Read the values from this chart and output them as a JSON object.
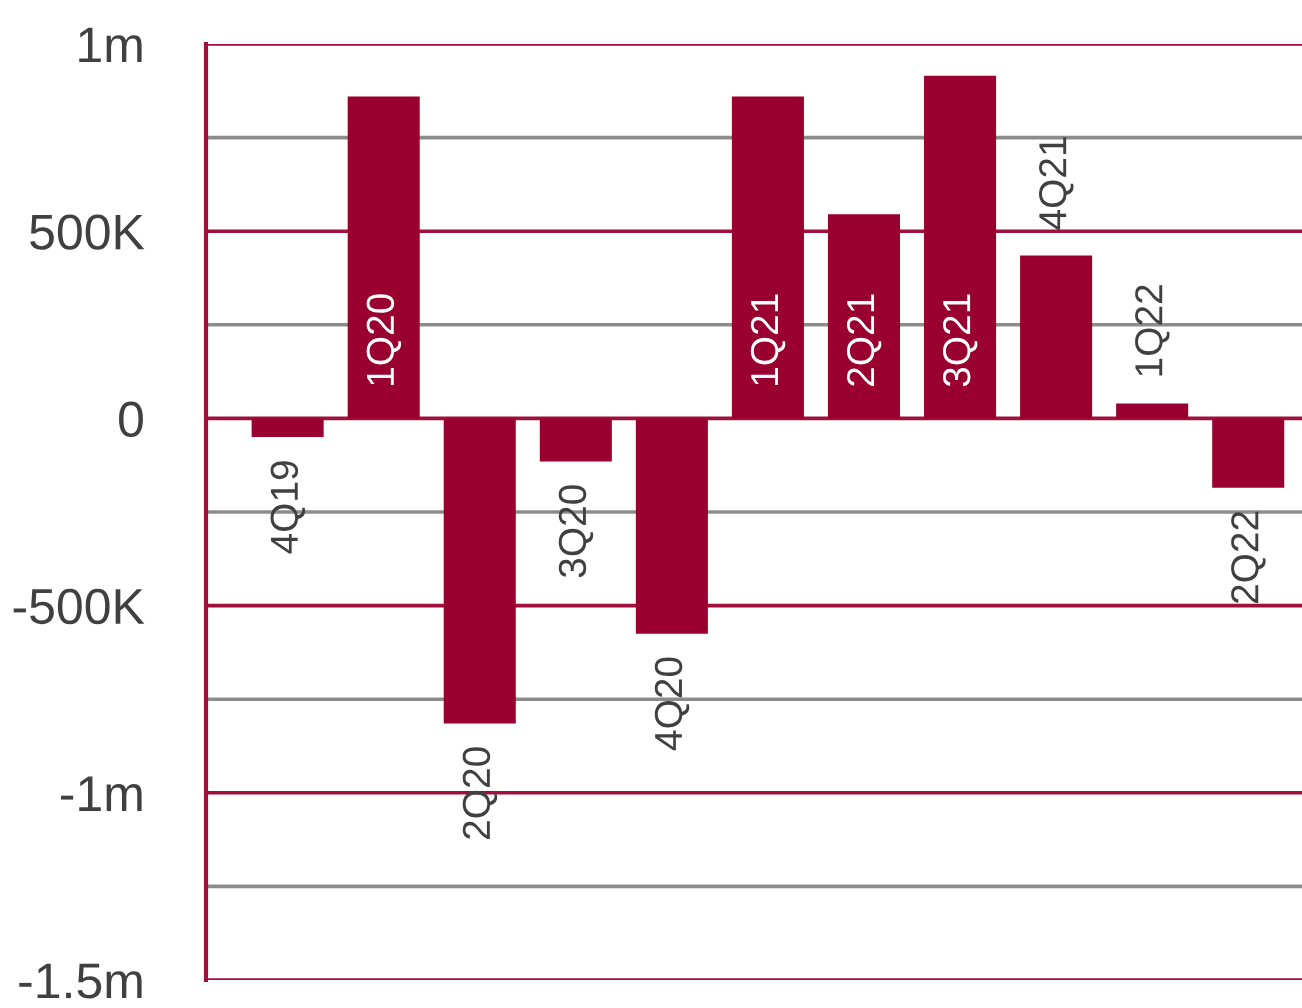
{
  "chart_data": {
    "type": "bar",
    "categories": [
      "4Q19",
      "1Q20",
      "2Q20",
      "3Q20",
      "4Q20",
      "1Q21",
      "2Q21",
      "3Q21",
      "4Q21",
      "1Q22",
      "2Q22"
    ],
    "values": [
      -50000,
      860000,
      -815000,
      -115000,
      -575000,
      860000,
      545000,
      915000,
      435000,
      40000,
      -185000
    ],
    "color": "#990030",
    "ylim": [
      -1500000,
      1000000
    ],
    "yticks": [
      {
        "value": 1000000,
        "label": "1m"
      },
      {
        "value": 750000,
        "label": null
      },
      {
        "value": 500000,
        "label": "500K"
      },
      {
        "value": 250000,
        "label": null
      },
      0,
      {
        "value": -250000,
        "label": null
      },
      {
        "value": -500000,
        "label": "-500K"
      },
      {
        "value": -750000,
        "label": null
      },
      {
        "value": -1000000,
        "label": "-1m"
      },
      {
        "value": -1250000,
        "label": null
      },
      {
        "value": -1500000,
        "label": "-1.5m"
      }
    ],
    "grid": "y"
  }
}
